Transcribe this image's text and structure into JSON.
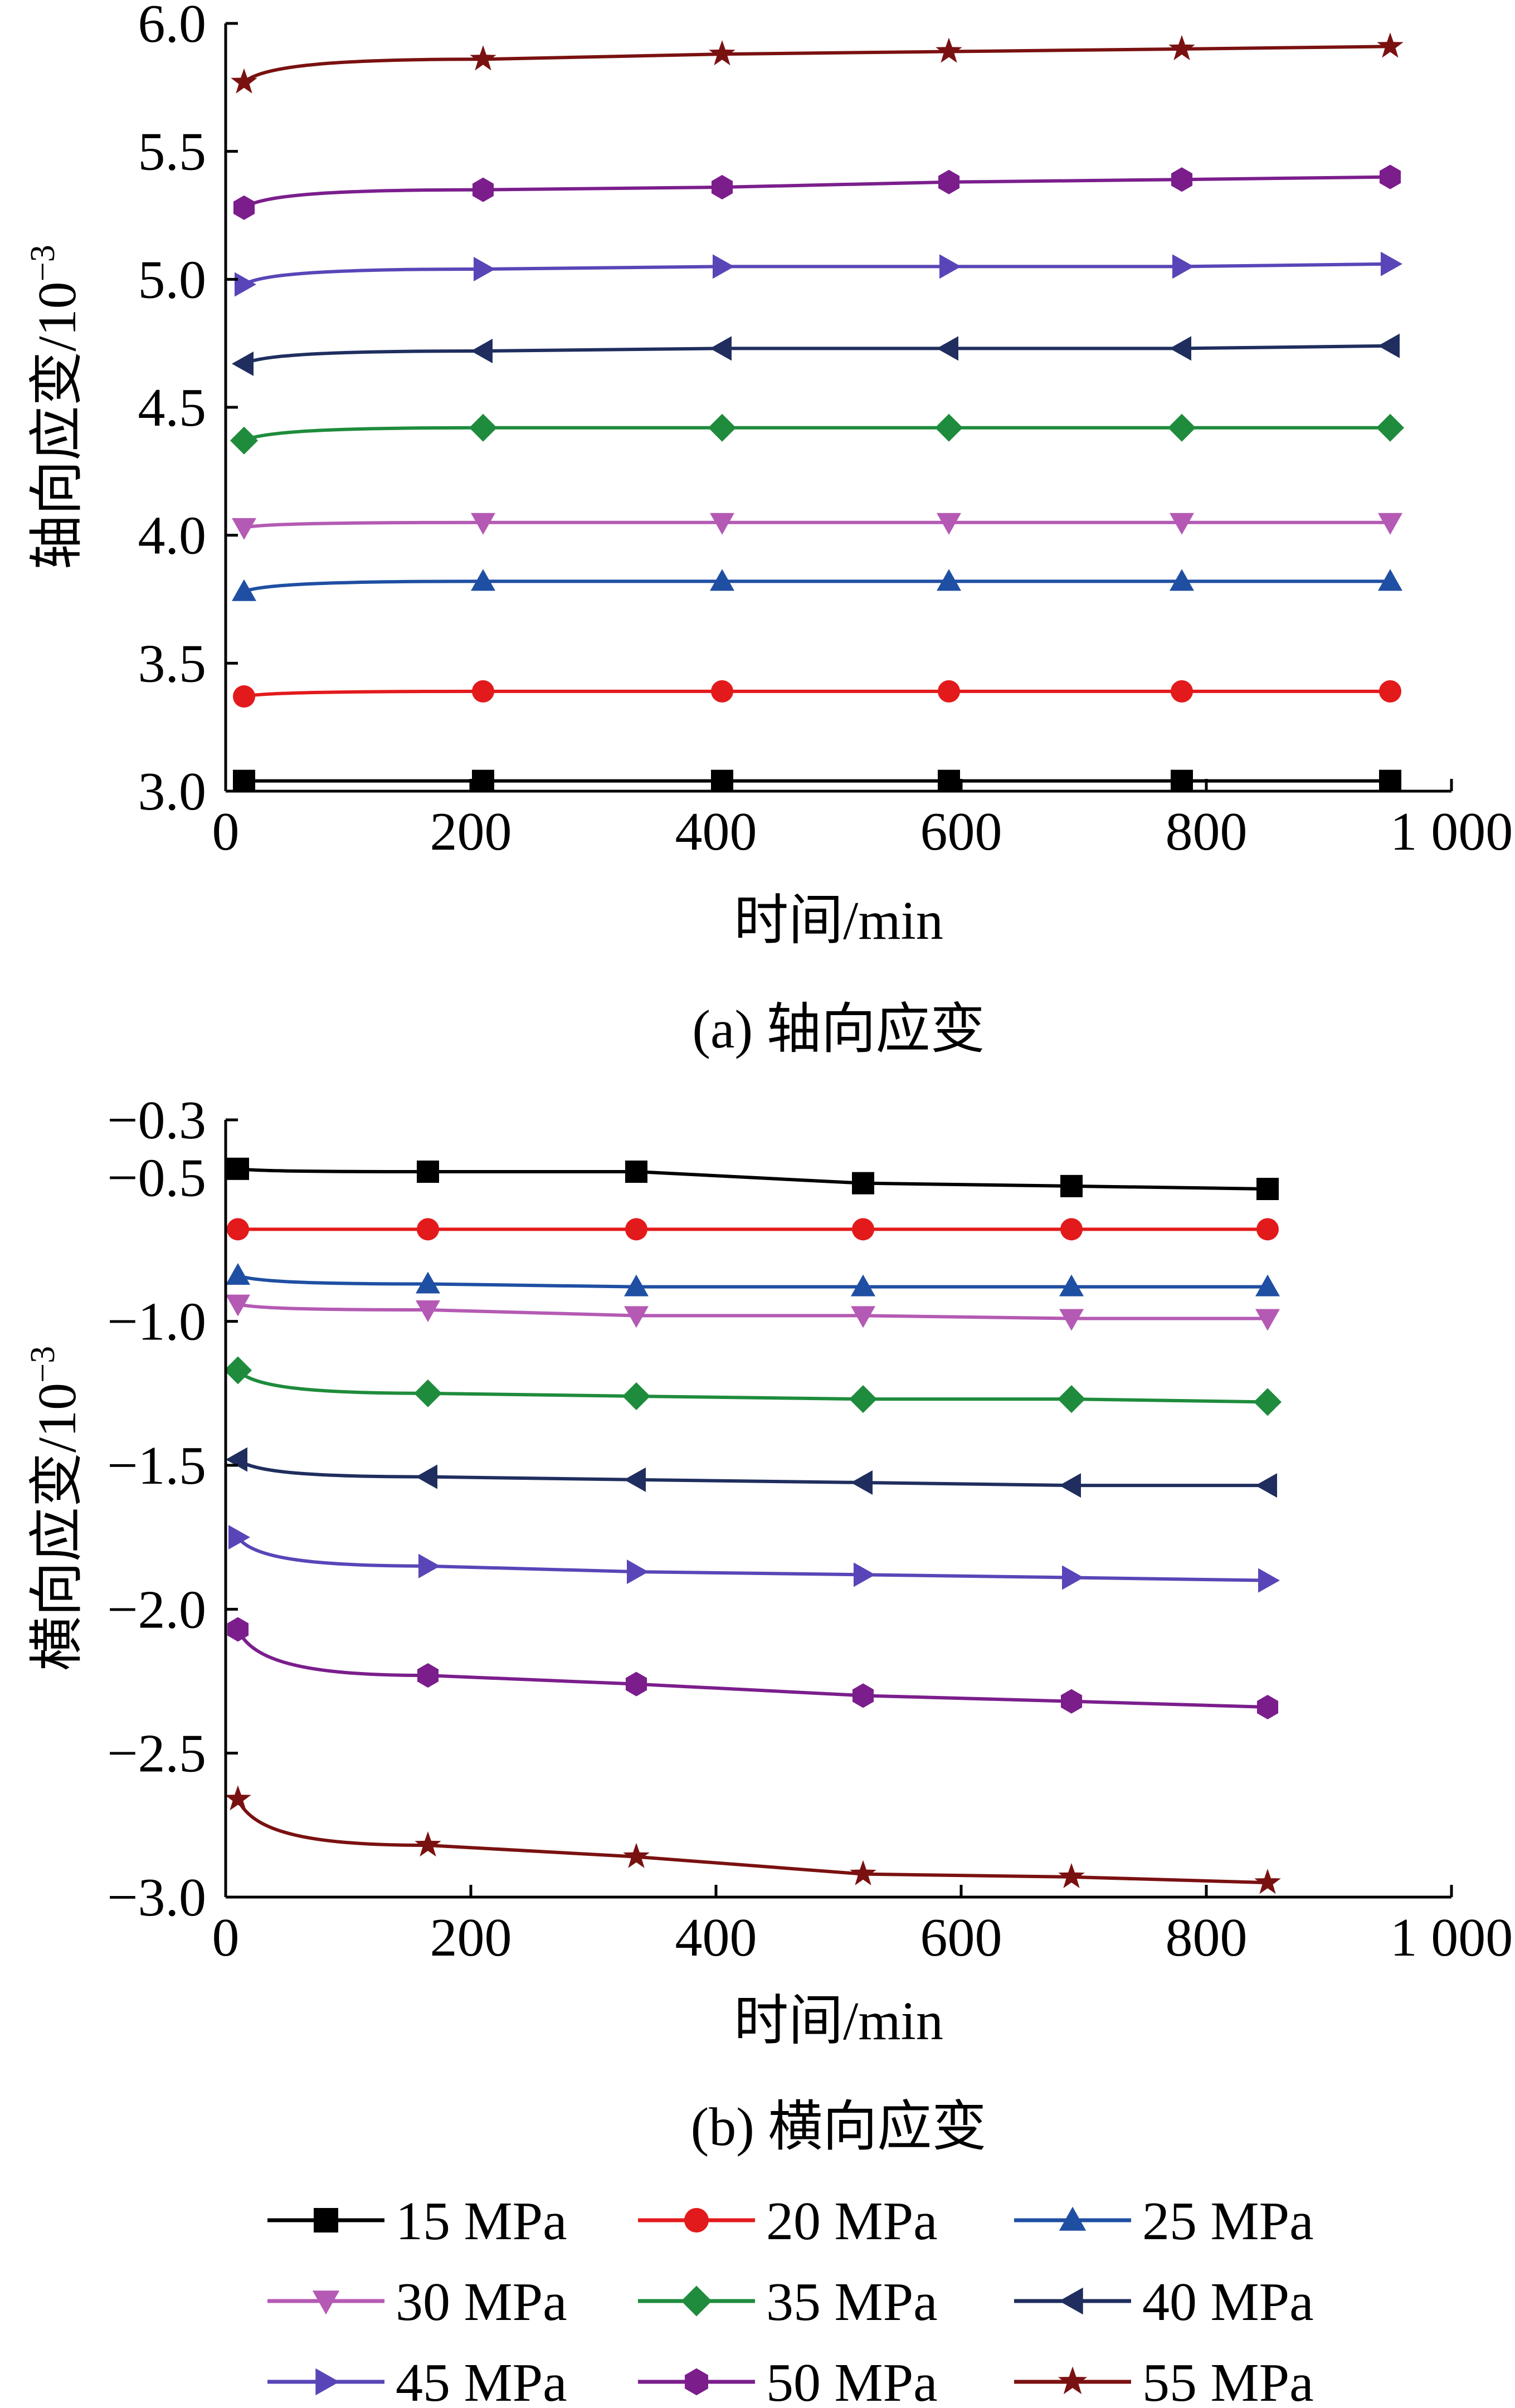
{
  "legend": [
    {
      "label": "15 MPa",
      "color": "#000000",
      "marker": "square"
    },
    {
      "label": "20 MPa",
      "color": "#e31a1c",
      "marker": "circle"
    },
    {
      "label": "25 MPa",
      "color": "#1f4fa3",
      "marker": "triangle-up"
    },
    {
      "label": "30 MPa",
      "color": "#b45ab4",
      "marker": "triangle-down"
    },
    {
      "label": "35 MPa",
      "color": "#1e8c3c",
      "marker": "diamond"
    },
    {
      "label": "40 MPa",
      "color": "#1f2e5e",
      "marker": "triangle-left"
    },
    {
      "label": "45 MPa",
      "color": "#5a45b8",
      "marker": "triangle-right"
    },
    {
      "label": "50 MPa",
      "color": "#7b1e8c",
      "marker": "hexagon"
    },
    {
      "label": "55 MPa",
      "color": "#7a1111",
      "marker": "star"
    }
  ],
  "chart_data": [
    {
      "type": "line",
      "caption": "(a)  轴向应变",
      "xlabel": "时间/min",
      "ylabel": "轴向应变/10",
      "ylabel_exp": "−3",
      "xlim": [
        0,
        1000
      ],
      "ylim": [
        3.0,
        6.0
      ],
      "xticks": [
        0,
        200,
        400,
        600,
        800,
        1000
      ],
      "xtick_labels": [
        "0",
        "200",
        "400",
        "600",
        "800",
        "1 000"
      ],
      "yticks": [
        3.0,
        3.5,
        4.0,
        4.5,
        5.0,
        5.5,
        6.0
      ],
      "ytick_labels": [
        "3.0",
        "3.5",
        "4.0",
        "4.5",
        "5.0",
        "5.5",
        "6.0"
      ],
      "x": [
        15,
        210,
        405,
        590,
        780,
        950
      ],
      "series": [
        {
          "name": "15 MPa",
          "values": [
            3.04,
            3.04,
            3.04,
            3.04,
            3.04,
            3.04
          ]
        },
        {
          "name": "20 MPa",
          "values": [
            3.37,
            3.39,
            3.39,
            3.39,
            3.39,
            3.39
          ]
        },
        {
          "name": "25 MPa",
          "values": [
            3.78,
            3.82,
            3.82,
            3.82,
            3.82,
            3.82
          ]
        },
        {
          "name": "30 MPa",
          "values": [
            4.03,
            4.05,
            4.05,
            4.05,
            4.05,
            4.05
          ]
        },
        {
          "name": "35 MPa",
          "values": [
            4.37,
            4.42,
            4.42,
            4.42,
            4.42,
            4.42
          ]
        },
        {
          "name": "40 MPa",
          "values": [
            4.67,
            4.72,
            4.73,
            4.73,
            4.73,
            4.74
          ]
        },
        {
          "name": "45 MPa",
          "values": [
            4.98,
            5.04,
            5.05,
            5.05,
            5.05,
            5.06
          ]
        },
        {
          "name": "50 MPa",
          "values": [
            5.28,
            5.35,
            5.36,
            5.38,
            5.39,
            5.4
          ]
        },
        {
          "name": "55 MPa",
          "values": [
            5.77,
            5.86,
            5.88,
            5.89,
            5.9,
            5.91
          ]
        }
      ]
    },
    {
      "type": "line",
      "caption": "(b)  横向应变",
      "xlabel": "时间/min",
      "ylabel": "横向应变/10",
      "ylabel_exp": "−3",
      "xlim": [
        0,
        1000
      ],
      "ylim": [
        -3.0,
        -0.3
      ],
      "xticks": [
        0,
        200,
        400,
        600,
        800,
        1000
      ],
      "xtick_labels": [
        "0",
        "200",
        "400",
        "600",
        "800",
        "1 000"
      ],
      "yticks": [
        -0.3,
        -0.5,
        -1.0,
        -1.5,
        -2.0,
        -2.5,
        -3.0
      ],
      "ytick_labels": [
        "−0.3",
        "−0.5",
        "−1.0",
        "−1.5",
        "−2.0",
        "−2.5",
        "−3.0"
      ],
      "x": [
        10,
        165,
        335,
        520,
        690,
        850
      ],
      "series": [
        {
          "name": "15 MPa",
          "values": [
            -0.47,
            -0.48,
            -0.48,
            -0.52,
            -0.53,
            -0.54
          ]
        },
        {
          "name": "20 MPa",
          "values": [
            -0.68,
            -0.68,
            -0.68,
            -0.68,
            -0.68,
            -0.68
          ]
        },
        {
          "name": "25 MPa",
          "values": [
            -0.84,
            -0.87,
            -0.88,
            -0.88,
            -0.88,
            -0.88
          ]
        },
        {
          "name": "30 MPa",
          "values": [
            -0.94,
            -0.96,
            -0.98,
            -0.98,
            -0.99,
            -0.99
          ]
        },
        {
          "name": "35 MPa",
          "values": [
            -1.17,
            -1.25,
            -1.26,
            -1.27,
            -1.27,
            -1.28
          ]
        },
        {
          "name": "40 MPa",
          "values": [
            -1.48,
            -1.54,
            -1.55,
            -1.56,
            -1.57,
            -1.57
          ]
        },
        {
          "name": "45 MPa",
          "values": [
            -1.75,
            -1.85,
            -1.87,
            -1.88,
            -1.89,
            -1.9
          ]
        },
        {
          "name": "50 MPa",
          "values": [
            -2.07,
            -2.23,
            -2.26,
            -2.3,
            -2.32,
            -2.34
          ]
        },
        {
          "name": "55 MPa",
          "values": [
            -2.66,
            -2.82,
            -2.86,
            -2.92,
            -2.93,
            -2.95
          ]
        }
      ]
    }
  ]
}
